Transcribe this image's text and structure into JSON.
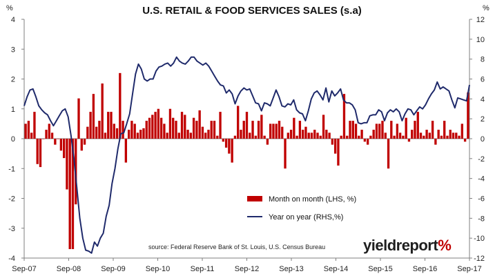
{
  "chart_data": {
    "type": "bar+line",
    "title": "U.S. RETAIL & FOOD SERVICES SALES (s.a)",
    "left_unit": "%",
    "right_unit": "%",
    "x_tick_labels": [
      "Sep-07",
      "Sep-08",
      "Sep-09",
      "Sep-10",
      "Sep-11",
      "Sep-12",
      "Sep-13",
      "Sep-14",
      "Sep-15",
      "Sep-16",
      "Sep-17"
    ],
    "left_axis": {
      "min": -4,
      "max": 4,
      "ticks": [
        4,
        3,
        2,
        1,
        0,
        -1,
        -2,
        -3,
        -4
      ]
    },
    "right_axis": {
      "min": -12,
      "max": 12,
      "ticks": [
        12,
        10,
        8,
        6,
        4,
        2,
        0,
        -2,
        -4,
        -6,
        -8,
        -10,
        -12
      ]
    },
    "grid": false,
    "legend_position": "bottom-center",
    "series": [
      {
        "name": "Month on month (LHS, %)",
        "kind": "bar",
        "axis": "left",
        "color": "#c00000",
        "values": [
          0.5,
          0.6,
          0.2,
          0.9,
          -0.85,
          -0.95,
          0,
          0.3,
          0.5,
          0.2,
          -0.2,
          0,
          -0.4,
          -0.65,
          -1.7,
          -3.7,
          -3.7,
          -2.2,
          1.35,
          -0.4,
          -0.2,
          0.4,
          0.9,
          1.5,
          0.4,
          0.6,
          1.85,
          0.2,
          0.9,
          0.9,
          0.5,
          0.35,
          2.2,
          0.6,
          -0.8,
          0.3,
          0.6,
          0.5,
          0.2,
          0.3,
          0.35,
          0.6,
          0.7,
          0.8,
          0.9,
          1.0,
          0.7,
          0.5,
          0.2,
          1.0,
          0.7,
          0.6,
          0.2,
          0.9,
          0.8,
          0.3,
          0.2,
          0.7,
          0.6,
          0.95,
          0.4,
          0.2,
          0.3,
          0.6,
          0.6,
          0.1,
          0.9,
          -0.1,
          -0.3,
          -0.5,
          -0.8,
          0.1,
          1.1,
          0.3,
          0.6,
          0.9,
          0.2,
          0.6,
          0.1,
          0.6,
          0.8,
          0.1,
          -0.2,
          0.5,
          0.5,
          0.5,
          0.6,
          0.4,
          -1.0,
          0.2,
          0.3,
          0.7,
          0.1,
          0.6,
          0.3,
          0.4,
          0.2,
          0.2,
          0.3,
          0.2,
          0.1,
          0.8,
          0.3,
          0.2,
          -0.2,
          -0.5,
          -0.9,
          0.1,
          1.5,
          0.1,
          0.6,
          0.6,
          0.5,
          0.1,
          0.3,
          -0.1,
          -0.2,
          0.1,
          0.3,
          0.5,
          0.5,
          0.6,
          0.2,
          -1.0,
          0.6,
          0.1,
          0.5,
          0.2,
          0.1,
          0.7,
          -0.1,
          0.3,
          0.6,
          0.9,
          0.2,
          0.1,
          0.3,
          0.2,
          0.6,
          -0.2,
          0.3,
          0.1,
          0.6,
          0.1,
          0.3,
          0.2,
          0.2,
          0.1,
          0.5,
          -0.1,
          1.55
        ]
      },
      {
        "name": "Year on year (RHS,%)",
        "kind": "line",
        "axis": "right",
        "color": "#1f2a6b",
        "values": [
          3.3,
          4.2,
          4.9,
          5.0,
          4.2,
          3.3,
          2.9,
          2.6,
          2.4,
          1.8,
          1.3,
          1.8,
          2.3,
          2.8,
          3.0,
          2.2,
          0.3,
          -2.0,
          -5.0,
          -8.0,
          -10.0,
          -11.2,
          -11.3,
          -11.5,
          -10.4,
          -10.8,
          -10.0,
          -9.5,
          -7.8,
          -6.7,
          -4.5,
          -3.0,
          -1.0,
          0.5,
          0.6,
          1.5,
          2.5,
          4.5,
          6.5,
          7.5,
          7.0,
          6.0,
          5.8,
          6.0,
          6.0,
          6.8,
          7.2,
          7.3,
          7.5,
          7.6,
          7.3,
          7.6,
          8.2,
          7.8,
          7.6,
          7.5,
          7.8,
          8.2,
          8.2,
          7.8,
          7.6,
          7.4,
          7.6,
          7.3,
          6.8,
          6.3,
          5.8,
          5.4,
          5.3,
          4.6,
          4.9,
          4.5,
          3.5,
          4.3,
          4.8,
          5.1,
          4.9,
          5.0,
          4.3,
          3.6,
          3.5,
          2.8,
          3.6,
          3.5,
          3.3,
          4.1,
          4.9,
          4.2,
          3.3,
          3.2,
          3.5,
          3.4,
          3.9,
          2.9,
          2.6,
          2.5,
          1.8,
          2.8,
          4.0,
          4.6,
          4.8,
          4.4,
          3.9,
          5.1,
          3.7,
          4.8,
          4.3,
          4.6,
          5.0,
          3.9,
          3.6,
          3.6,
          3.4,
          2.9,
          1.6,
          1.5,
          1.6,
          1.6,
          2.3,
          2.4,
          2.4,
          2.9,
          2.7,
          1.8,
          2.6,
          2.9,
          2.7,
          3.0,
          2.7,
          1.8,
          2.5,
          3.0,
          2.9,
          2.4,
          2.8,
          3.2,
          3.0,
          3.4,
          4.0,
          4.5,
          4.9,
          5.7,
          5.0,
          5.2,
          5.0,
          4.8,
          3.9,
          3.1,
          4.1,
          4.0,
          3.9,
          3.8,
          5.4
        ]
      }
    ],
    "annotations": [
      "source: Federal Reserve Bank of St. Louis, U.S. Census Bureau"
    ],
    "branding": {
      "main": "yieldreport",
      "suffix": "%"
    }
  }
}
